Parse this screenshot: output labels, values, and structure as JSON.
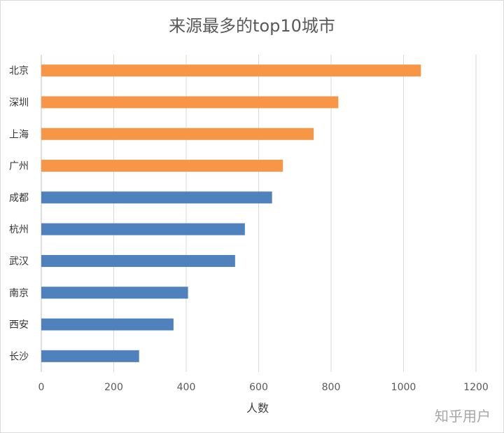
{
  "chart_data": {
    "type": "bar",
    "orientation": "horizontal",
    "title": "来源最多的top10城市",
    "xlabel": "人数",
    "ylabel": "",
    "xlim": [
      0,
      1200
    ],
    "xticks": [
      0,
      200,
      400,
      600,
      800,
      1000,
      1200
    ],
    "grid": true,
    "categories": [
      "北京",
      "深圳",
      "上海",
      "广州",
      "成都",
      "杭州",
      "武汉",
      "南京",
      "西安",
      "长沙"
    ],
    "values": [
      1048,
      820,
      752,
      667,
      637,
      562,
      535,
      405,
      365,
      270
    ],
    "bar_colors": [
      "#F79646",
      "#F79646",
      "#F79646",
      "#F79646",
      "#4F81BD",
      "#4F81BD",
      "#4F81BD",
      "#4F81BD",
      "#4F81BD",
      "#4F81BD"
    ]
  },
  "watermark": "知乎用户",
  "colors": {
    "highlight": "#F79646",
    "base": "#4F81BD",
    "grid": "#d9d9d9"
  }
}
